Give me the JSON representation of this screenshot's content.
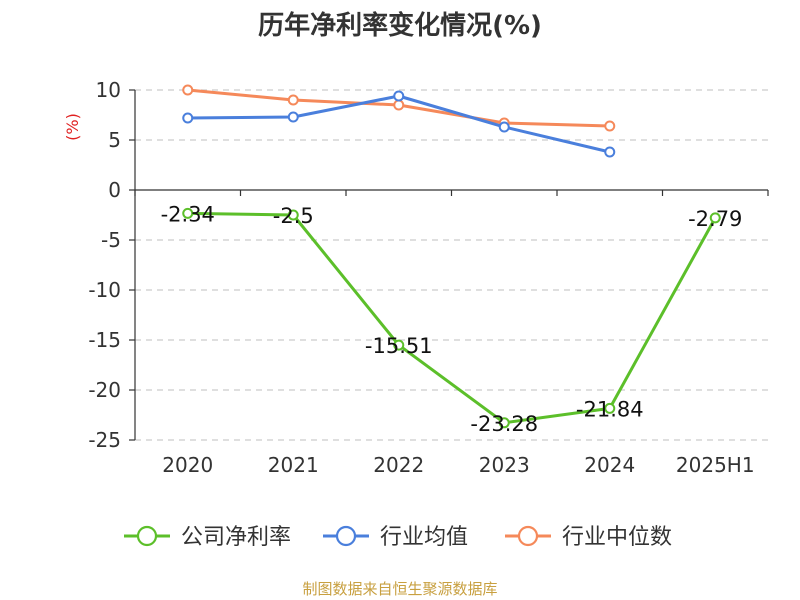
{
  "chart_data": {
    "type": "line",
    "title": "历年净利率变化情况(%)",
    "ylabel": "(%)",
    "xlabel": "",
    "categories": [
      "2020",
      "2021",
      "2022",
      "2023",
      "2024",
      "2025H1"
    ],
    "ylim": [
      -25,
      10
    ],
    "yticks": [
      10,
      5,
      0,
      -5,
      -10,
      -15,
      -20,
      -25
    ],
    "grid": true,
    "legend_position": "bottom",
    "series": [
      {
        "name": "公司净利率",
        "color": "#5cbf2a",
        "values": [
          -2.34,
          -2.5,
          -15.51,
          -23.28,
          -21.84,
          -2.79
        ],
        "labels": [
          "-2.34",
          "-2.5",
          "-15.51",
          "-23.28",
          "-21.84",
          "-2.79"
        ]
      },
      {
        "name": "行业均值",
        "color": "#4a7fdc",
        "values": [
          7.2,
          7.3,
          9.4,
          6.3,
          3.8,
          null
        ]
      },
      {
        "name": "行业中位数",
        "color": "#f5895a",
        "values": [
          10.0,
          9.0,
          8.5,
          6.7,
          6.4,
          null
        ]
      }
    ]
  },
  "footer": {
    "source": "制图数据来自恒生聚源数据库"
  }
}
